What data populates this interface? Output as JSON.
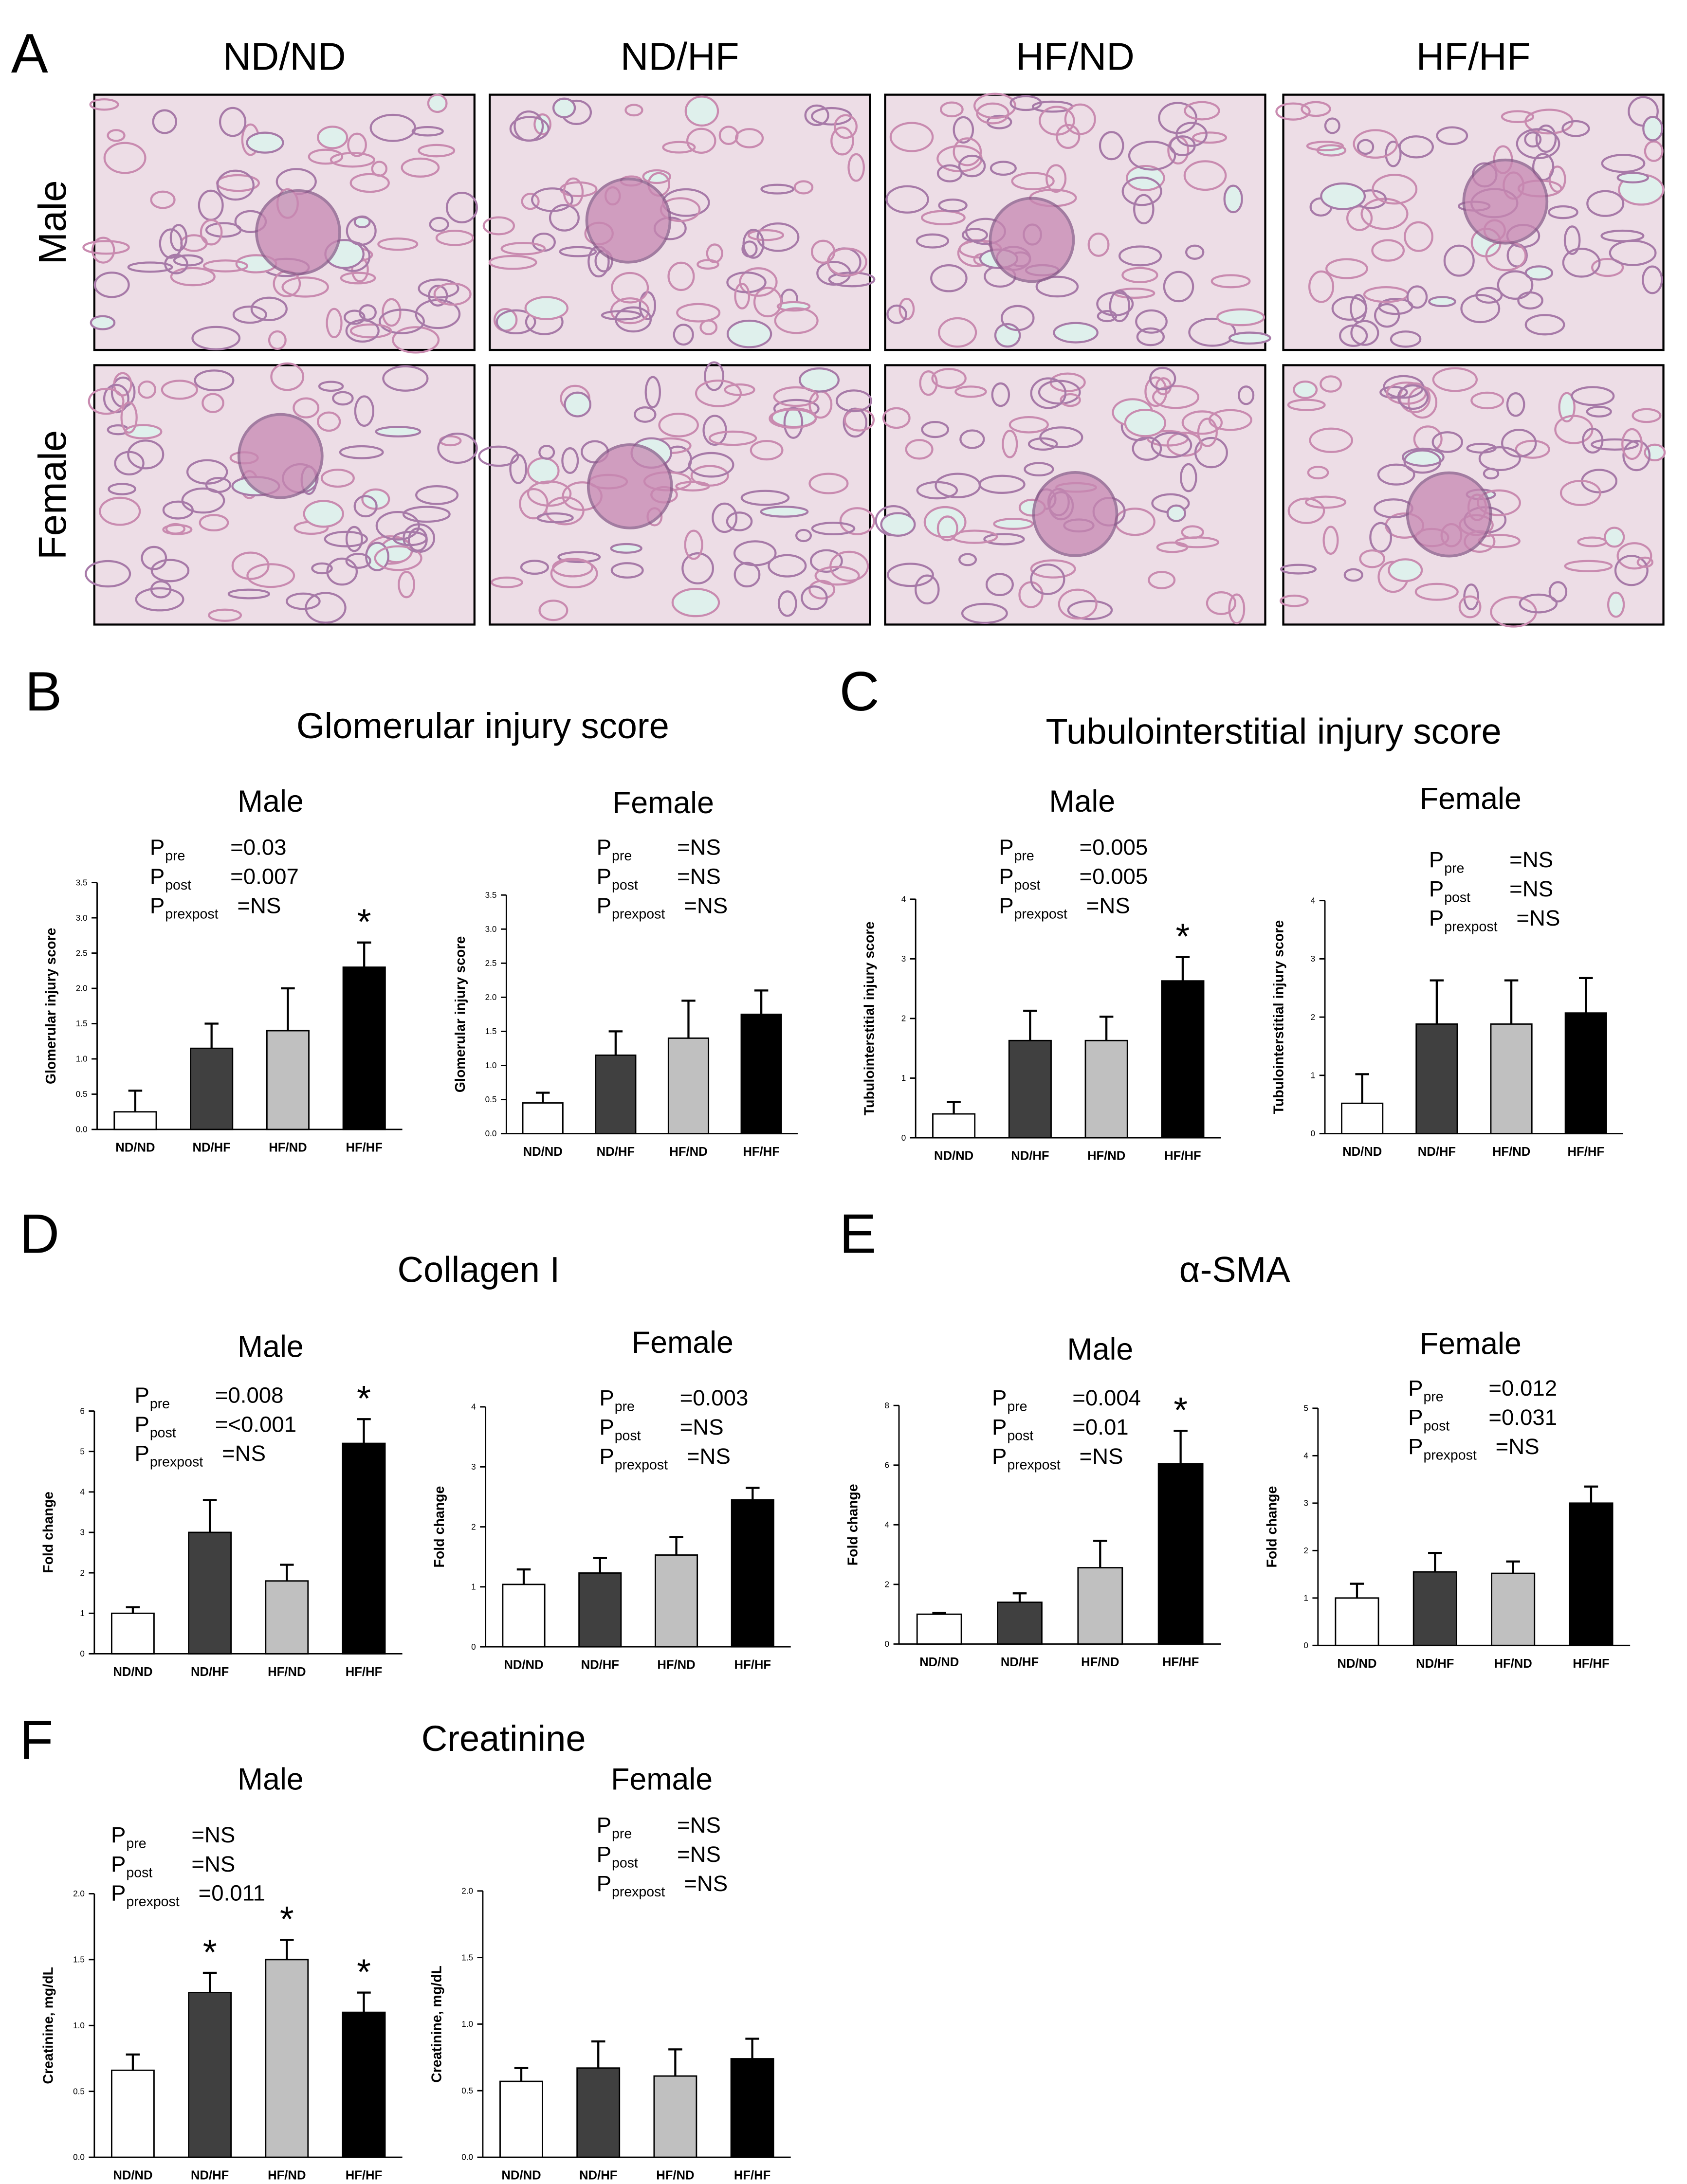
{
  "photo_panel": {
    "label": "A",
    "columns": [
      "ND/ND",
      "ND/HF",
      "HF/ND",
      "HF/HF"
    ],
    "rows": [
      "Male",
      "Female"
    ]
  },
  "panels": [
    {
      "label": "B",
      "title": "Glomerular injury score"
    },
    {
      "label": "C",
      "title": "Tubulointerstitial injury score"
    },
    {
      "label": "D",
      "title": "Collagen I"
    },
    {
      "label": "E",
      "title": "α-SMA"
    },
    {
      "label": "F",
      "title": "Creatinine"
    }
  ],
  "chart_data": [
    {
      "type": "bar",
      "title": "Male",
      "y_label": "Glomerular injury score",
      "categories": [
        "ND/ND",
        "ND/HF",
        "HF/ND",
        "HF/HF"
      ],
      "values": [
        0.25,
        1.15,
        1.4,
        2.3
      ],
      "errors": [
        0.3,
        0.35,
        0.6,
        0.35
      ],
      "colors": [
        "#ffffff",
        "#404040",
        "#c0c0c0",
        "#000000"
      ],
      "stars": [
        null,
        null,
        null,
        "*"
      ],
      "annotations": [
        {
          "symbol": "P",
          "subscript": "pre",
          "text": "=0.03"
        },
        {
          "symbol": "P",
          "subscript": "post",
          "text": "=0.007"
        },
        {
          "symbol": "P",
          "subscript": "prexpost",
          "text": "=NS"
        }
      ],
      "ylim": [
        0,
        3.5
      ],
      "yticks": [
        {
          "value": 0,
          "label": "0.0"
        },
        {
          "value": 0.5,
          "label": "0.5"
        },
        {
          "value": 1,
          "label": "1.0"
        },
        {
          "value": 1.5,
          "label": "1.5"
        },
        {
          "value": 2,
          "label": "2.0"
        },
        {
          "value": 2.5,
          "label": "2.5"
        },
        {
          "value": 3,
          "label": "3.0"
        },
        {
          "value": 3.5,
          "label": "3.5"
        }
      ]
    },
    {
      "type": "bar",
      "title": "Female",
      "y_label": "Glomerular injury score",
      "categories": [
        "ND/ND",
        "ND/HF",
        "HF/ND",
        "HF/HF"
      ],
      "values": [
        0.45,
        1.15,
        1.4,
        1.75
      ],
      "errors": [
        0.15,
        0.35,
        0.55,
        0.35
      ],
      "colors": [
        "#ffffff",
        "#404040",
        "#c0c0c0",
        "#000000"
      ],
      "annotations": [
        {
          "symbol": "P",
          "subscript": "pre",
          "text": "=NS"
        },
        {
          "symbol": "P",
          "subscript": "post",
          "text": "=NS"
        },
        {
          "symbol": "P",
          "subscript": "prexpost",
          "text": "=NS"
        }
      ],
      "ylim": [
        0,
        3.5
      ],
      "yticks": [
        {
          "value": 0,
          "label": "0.0"
        },
        {
          "value": 0.5,
          "label": "0.5"
        },
        {
          "value": 1,
          "label": "1.0"
        },
        {
          "value": 1.5,
          "label": "1.5"
        },
        {
          "value": 2,
          "label": "2.0"
        },
        {
          "value": 2.5,
          "label": "2.5"
        },
        {
          "value": 3,
          "label": "3.0"
        },
        {
          "value": 3.5,
          "label": "3.5"
        }
      ]
    },
    {
      "type": "bar",
      "title": "Male",
      "y_label": "Tubulointerstitial injury score",
      "categories": [
        "ND/ND",
        "ND/HF",
        "HF/ND",
        "HF/HF"
      ],
      "values": [
        0.4,
        1.63,
        1.63,
        2.63
      ],
      "errors": [
        0.2,
        0.5,
        0.4,
        0.4
      ],
      "colors": [
        "#ffffff",
        "#404040",
        "#c0c0c0",
        "#000000"
      ],
      "stars": [
        null,
        null,
        null,
        "*"
      ],
      "annotations": [
        {
          "symbol": "P",
          "subscript": "pre",
          "text": "=0.005"
        },
        {
          "symbol": "P",
          "subscript": "post",
          "text": "=0.005"
        },
        {
          "symbol": "P",
          "subscript": "prexpost",
          "text": "=NS"
        }
      ],
      "ylim": [
        0,
        4
      ],
      "yticks": [
        0,
        1,
        2,
        3,
        4
      ]
    },
    {
      "type": "bar",
      "title": "Female",
      "y_label": "Tubulointerstitial injury score",
      "categories": [
        "ND/ND",
        "ND/HF",
        "HF/ND",
        "HF/HF"
      ],
      "values": [
        0.52,
        1.88,
        1.88,
        2.07
      ],
      "errors": [
        0.5,
        0.75,
        0.75,
        0.6
      ],
      "colors": [
        "#ffffff",
        "#404040",
        "#c0c0c0",
        "#000000"
      ],
      "annotations": [
        {
          "symbol": "P",
          "subscript": "pre",
          "text": "=NS"
        },
        {
          "symbol": "P",
          "subscript": "post",
          "text": "=NS"
        },
        {
          "symbol": "P",
          "subscript": "prexpost",
          "text": "=NS"
        }
      ],
      "ylim": [
        0,
        4
      ],
      "yticks": [
        0,
        1,
        2,
        3,
        4
      ]
    },
    {
      "type": "bar",
      "title": "Male",
      "y_label": "Fold change",
      "categories": [
        "ND/ND",
        "ND/HF",
        "HF/ND",
        "HF/HF"
      ],
      "values": [
        1.0,
        3.0,
        1.8,
        5.2
      ],
      "errors": [
        0.15,
        0.8,
        0.4,
        0.6
      ],
      "colors": [
        "#ffffff",
        "#404040",
        "#c0c0c0",
        "#000000"
      ],
      "stars": [
        null,
        null,
        null,
        "*"
      ],
      "annotations": [
        {
          "symbol": "P",
          "subscript": "pre",
          "text": "=0.008"
        },
        {
          "symbol": "P",
          "subscript": "post",
          "text": "=<0.001"
        },
        {
          "symbol": "P",
          "subscript": "prexpost",
          "text": "=NS"
        }
      ],
      "ylim": [
        0,
        6
      ],
      "yticks": [
        0,
        1,
        2,
        3,
        4,
        5,
        6
      ]
    },
    {
      "type": "bar",
      "title": "Female",
      "y_label": "Fold change",
      "categories": [
        "ND/ND",
        "ND/HF",
        "HF/ND",
        "HF/HF"
      ],
      "values": [
        1.04,
        1.23,
        1.53,
        2.45
      ],
      "errors": [
        0.25,
        0.25,
        0.3,
        0.2
      ],
      "colors": [
        "#ffffff",
        "#404040",
        "#c0c0c0",
        "#000000"
      ],
      "annotations": [
        {
          "symbol": "P",
          "subscript": "pre",
          "text": "=0.003"
        },
        {
          "symbol": "P",
          "subscript": "post",
          "text": "=NS"
        },
        {
          "symbol": "P",
          "subscript": "prexpost",
          "text": "=NS"
        }
      ],
      "ylim": [
        0,
        4
      ],
      "yticks": [
        0,
        1,
        2,
        3,
        4
      ]
    },
    {
      "type": "bar",
      "title": "Male",
      "y_label": "Fold change",
      "categories": [
        "ND/ND",
        "ND/HF",
        "HF/ND",
        "HF/HF"
      ],
      "values": [
        1.0,
        1.4,
        2.56,
        6.05
      ],
      "errors": [
        0.05,
        0.3,
        0.9,
        1.1
      ],
      "colors": [
        "#ffffff",
        "#404040",
        "#c0c0c0",
        "#000000"
      ],
      "stars": [
        null,
        null,
        null,
        "*"
      ],
      "annotations": [
        {
          "symbol": "P",
          "subscript": "pre",
          "text": "=0.004"
        },
        {
          "symbol": "P",
          "subscript": "post",
          "text": "=0.01"
        },
        {
          "symbol": "P",
          "subscript": "prexpost",
          "text": "=NS"
        }
      ],
      "ylim": [
        0,
        8
      ],
      "yticks": [
        0,
        2,
        4,
        6,
        8
      ]
    },
    {
      "type": "bar",
      "title": "Female",
      "y_label": "Fold change",
      "categories": [
        "ND/ND",
        "ND/HF",
        "HF/ND",
        "HF/HF"
      ],
      "values": [
        1.0,
        1.55,
        1.52,
        3.0
      ],
      "errors": [
        0.3,
        0.4,
        0.25,
        0.35
      ],
      "colors": [
        "#ffffff",
        "#404040",
        "#c0c0c0",
        "#000000"
      ],
      "annotations": [
        {
          "symbol": "P",
          "subscript": "pre",
          "text": "=0.012"
        },
        {
          "symbol": "P",
          "subscript": "post",
          "text": "=0.031"
        },
        {
          "symbol": "P",
          "subscript": "prexpost",
          "text": "=NS"
        }
      ],
      "ylim": [
        0,
        5
      ],
      "yticks": [
        0,
        1,
        2,
        3,
        4,
        5
      ]
    },
    {
      "type": "bar",
      "title": "Male",
      "y_label": "Creatinine, mg/dL",
      "categories": [
        "ND/ND",
        "ND/HF",
        "HF/ND",
        "HF/HF"
      ],
      "values": [
        0.66,
        1.25,
        1.5,
        1.1
      ],
      "errors": [
        0.12,
        0.15,
        0.15,
        0.15
      ],
      "colors": [
        "#ffffff",
        "#404040",
        "#c0c0c0",
        "#000000"
      ],
      "stars": [
        null,
        "*",
        "*",
        "*"
      ],
      "annotations": [
        {
          "symbol": "P",
          "subscript": "pre",
          "text": "=NS"
        },
        {
          "symbol": "P",
          "subscript": "post",
          "text": "=NS"
        },
        {
          "symbol": "P",
          "subscript": "prexpost",
          "text": "=0.011"
        }
      ],
      "ylim": [
        0,
        2
      ],
      "yticks": [
        {
          "value": 0,
          "label": "0.0"
        },
        {
          "value": 0.5,
          "label": "0.5"
        },
        {
          "value": 1,
          "label": "1.0"
        },
        {
          "value": 1.5,
          "label": "1.5"
        },
        {
          "value": 2,
          "label": "2.0"
        }
      ]
    },
    {
      "type": "bar",
      "title": "Female",
      "y_label": "Creatinine, mg/dL",
      "categories": [
        "ND/ND",
        "ND/HF",
        "HF/ND",
        "HF/HF"
      ],
      "values": [
        0.57,
        0.67,
        0.61,
        0.74
      ],
      "errors": [
        0.1,
        0.2,
        0.2,
        0.15
      ],
      "colors": [
        "#ffffff",
        "#404040",
        "#c0c0c0",
        "#000000"
      ],
      "annotations": [
        {
          "symbol": "P",
          "subscript": "pre",
          "text": "=NS"
        },
        {
          "symbol": "P",
          "subscript": "post",
          "text": "=NS"
        },
        {
          "symbol": "P",
          "subscript": "prexpost",
          "text": "=NS"
        }
      ],
      "ylim": [
        0,
        2
      ],
      "yticks": [
        {
          "value": 0,
          "label": "0.0"
        },
        {
          "value": 0.5,
          "label": "0.5"
        },
        {
          "value": 1,
          "label": "1.0"
        },
        {
          "value": 1.5,
          "label": "1.5"
        },
        {
          "value": 2,
          "label": "2.0"
        }
      ]
    }
  ]
}
